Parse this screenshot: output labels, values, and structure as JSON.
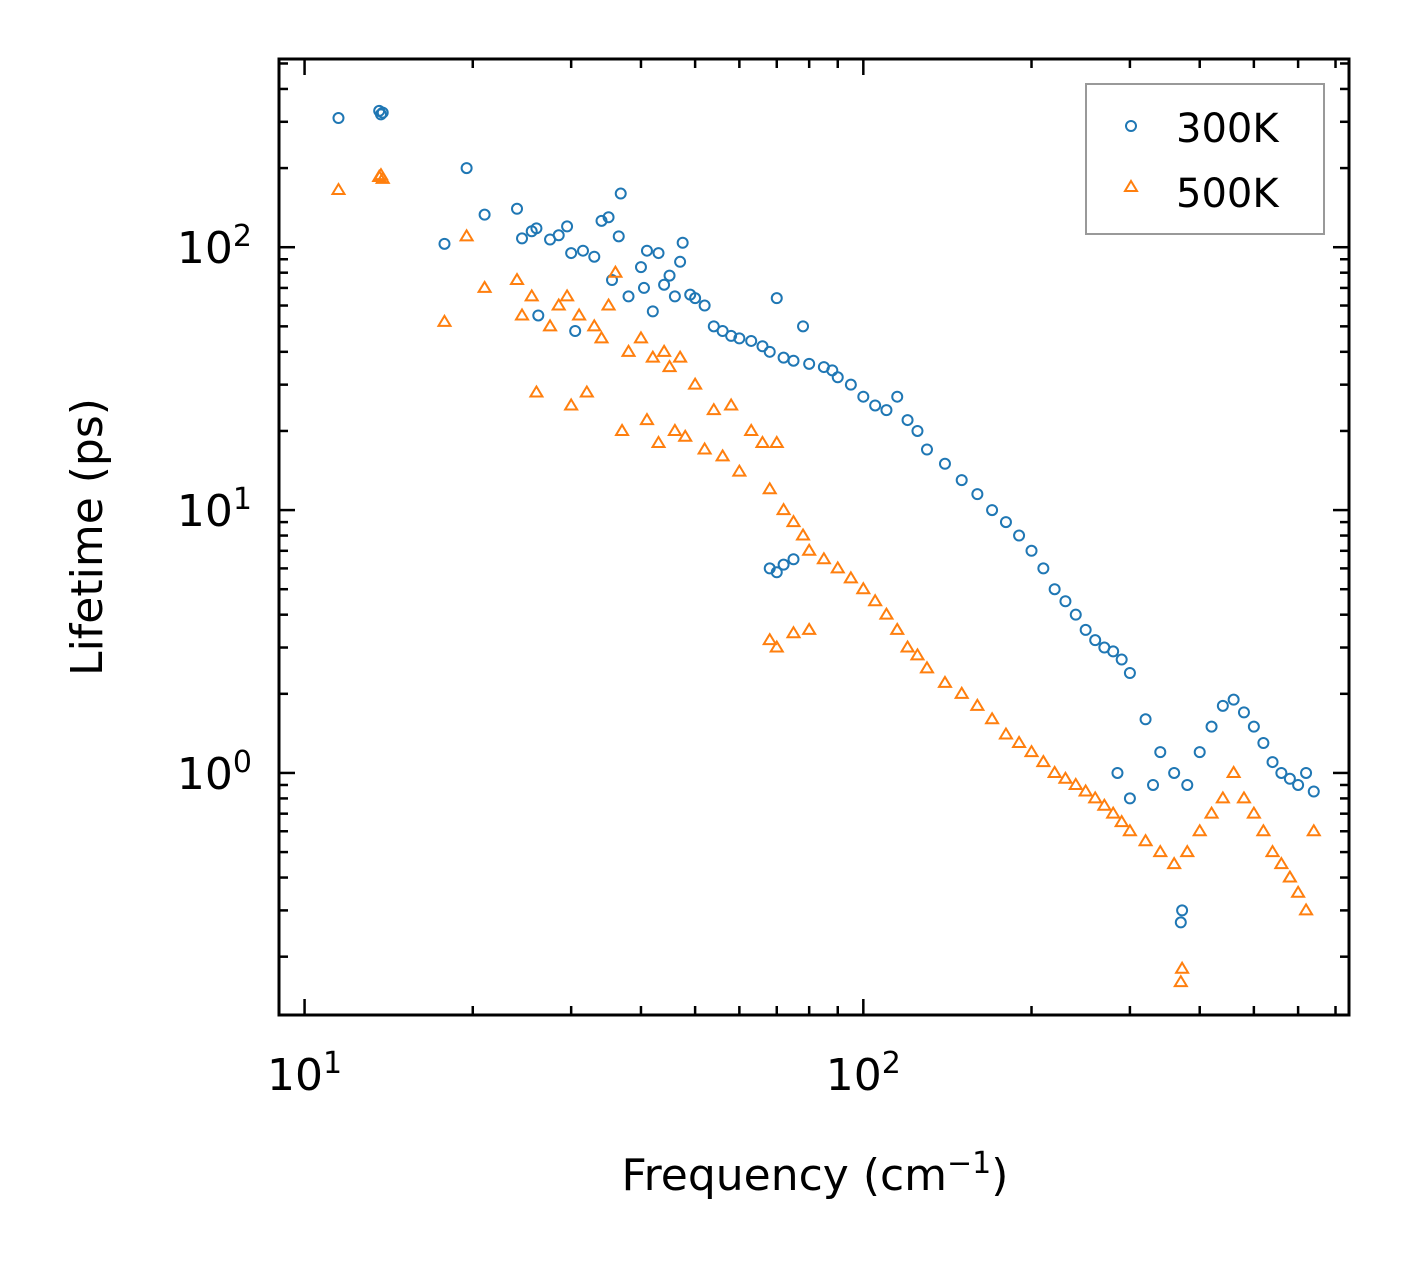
{
  "chart_data": {
    "type": "scatter",
    "title": "",
    "xlabel": "Frequency (cm",
    "xlabel_exponent": "−1",
    "xlabel_suffix": ")",
    "ylabel": "Lifetime (ps)",
    "xscale": "log",
    "yscale": "log",
    "xlim": [
      9,
      740
    ],
    "ylim": [
      0.12,
      520
    ],
    "x_ticks": [
      {
        "value": 10,
        "base": "10",
        "exp": "1"
      },
      {
        "value": 100,
        "base": "10",
        "exp": "2"
      }
    ],
    "y_ticks": [
      {
        "value": 1,
        "base": "10",
        "exp": "0"
      },
      {
        "value": 10,
        "base": "10",
        "exp": "1"
      },
      {
        "value": 100,
        "base": "10",
        "exp": "2"
      }
    ],
    "legend": {
      "position": "top-right"
    },
    "series": [
      {
        "name": "300K",
        "marker": "circle",
        "color": "#1f77b4",
        "points": [
          [
            11.5,
            310
          ],
          [
            13.6,
            330
          ],
          [
            13.7,
            320
          ],
          [
            13.8,
            325
          ],
          [
            17.8,
            103
          ],
          [
            19.5,
            200
          ],
          [
            21,
            133
          ],
          [
            24,
            140
          ],
          [
            24.5,
            108
          ],
          [
            25.5,
            115
          ],
          [
            26,
            118
          ],
          [
            26.2,
            55
          ],
          [
            27.5,
            107
          ],
          [
            28.5,
            111
          ],
          [
            29.5,
            120
          ],
          [
            30,
            95
          ],
          [
            30.5,
            48
          ],
          [
            31.5,
            97
          ],
          [
            33,
            92
          ],
          [
            34,
            126
          ],
          [
            35,
            130
          ],
          [
            35.5,
            75
          ],
          [
            36.5,
            110
          ],
          [
            36.8,
            160
          ],
          [
            38,
            65
          ],
          [
            40,
            84
          ],
          [
            40.5,
            70
          ],
          [
            41,
            97
          ],
          [
            42,
            57
          ],
          [
            43,
            95
          ],
          [
            44,
            72
          ],
          [
            45,
            78
          ],
          [
            46,
            65
          ],
          [
            47,
            88
          ],
          [
            47.5,
            104
          ],
          [
            49,
            66
          ],
          [
            50,
            64
          ],
          [
            52,
            60
          ],
          [
            54,
            50
          ],
          [
            56,
            48
          ],
          [
            58,
            46
          ],
          [
            60,
            45
          ],
          [
            63,
            44
          ],
          [
            66,
            42
          ],
          [
            68,
            40
          ],
          [
            70,
            64
          ],
          [
            72,
            38
          ],
          [
            75,
            37
          ],
          [
            78,
            50
          ],
          [
            80,
            36
          ],
          [
            85,
            35
          ],
          [
            88,
            34
          ],
          [
            90,
            32
          ],
          [
            95,
            30
          ],
          [
            100,
            27
          ],
          [
            105,
            25
          ],
          [
            110,
            24
          ],
          [
            115,
            27
          ],
          [
            120,
            22
          ],
          [
            125,
            20
          ],
          [
            130,
            17
          ],
          [
            140,
            15
          ],
          [
            150,
            13
          ],
          [
            160,
            11.5
          ],
          [
            170,
            10
          ],
          [
            180,
            9
          ],
          [
            190,
            8
          ],
          [
            200,
            7
          ],
          [
            210,
            6
          ],
          [
            220,
            5
          ],
          [
            230,
            4.5
          ],
          [
            240,
            4
          ],
          [
            250,
            3.5
          ],
          [
            260,
            3.2
          ],
          [
            270,
            3.0
          ],
          [
            280,
            2.9
          ],
          [
            290,
            2.7
          ],
          [
            300,
            2.4
          ],
          [
            320,
            1.6
          ],
          [
            340,
            1.2
          ],
          [
            360,
            1.0
          ],
          [
            380,
            0.9
          ],
          [
            400,
            1.2
          ],
          [
            420,
            1.5
          ],
          [
            440,
            1.8
          ],
          [
            460,
            1.9
          ],
          [
            480,
            1.7
          ],
          [
            500,
            1.5
          ],
          [
            520,
            1.3
          ],
          [
            540,
            1.1
          ],
          [
            560,
            1.0
          ],
          [
            580,
            0.95
          ],
          [
            600,
            0.9
          ],
          [
            620,
            1.0
          ],
          [
            640,
            0.85
          ],
          [
            68,
            6.0
          ],
          [
            70,
            5.8
          ],
          [
            72,
            6.2
          ],
          [
            75,
            6.5
          ],
          [
            285,
            1.0
          ],
          [
            300,
            0.8
          ],
          [
            330,
            0.9
          ],
          [
            370,
            0.27
          ],
          [
            372,
            0.3
          ]
        ]
      },
      {
        "name": "500K",
        "marker": "triangle",
        "color": "#ff7f0e",
        "points": [
          [
            11.5,
            165
          ],
          [
            13.6,
            185
          ],
          [
            13.7,
            188
          ],
          [
            13.8,
            182
          ],
          [
            17.8,
            52
          ],
          [
            19.5,
            110
          ],
          [
            21,
            70
          ],
          [
            24,
            75
          ],
          [
            24.5,
            55
          ],
          [
            25.5,
            65
          ],
          [
            26,
            28
          ],
          [
            27.5,
            50
          ],
          [
            28.5,
            60
          ],
          [
            29.5,
            65
          ],
          [
            30,
            25
          ],
          [
            31,
            55
          ],
          [
            32,
            28
          ],
          [
            33,
            50
          ],
          [
            34,
            45
          ],
          [
            35,
            60
          ],
          [
            36,
            80
          ],
          [
            37,
            20
          ],
          [
            38,
            40
          ],
          [
            40,
            45
          ],
          [
            41,
            22
          ],
          [
            42,
            38
          ],
          [
            43,
            18
          ],
          [
            44,
            40
          ],
          [
            45,
            35
          ],
          [
            46,
            20
          ],
          [
            47,
            38
          ],
          [
            48,
            19
          ],
          [
            50,
            30
          ],
          [
            52,
            17
          ],
          [
            54,
            24
          ],
          [
            56,
            16
          ],
          [
            58,
            25
          ],
          [
            60,
            14
          ],
          [
            63,
            20
          ],
          [
            66,
            18
          ],
          [
            68,
            12
          ],
          [
            70,
            18
          ],
          [
            72,
            10
          ],
          [
            75,
            9
          ],
          [
            78,
            8
          ],
          [
            80,
            7
          ],
          [
            85,
            6.5
          ],
          [
            90,
            6
          ],
          [
            95,
            5.5
          ],
          [
            100,
            5
          ],
          [
            105,
            4.5
          ],
          [
            110,
            4
          ],
          [
            115,
            3.5
          ],
          [
            120,
            3
          ],
          [
            125,
            2.8
          ],
          [
            130,
            2.5
          ],
          [
            140,
            2.2
          ],
          [
            150,
            2.0
          ],
          [
            160,
            1.8
          ],
          [
            170,
            1.6
          ],
          [
            180,
            1.4
          ],
          [
            190,
            1.3
          ],
          [
            200,
            1.2
          ],
          [
            210,
            1.1
          ],
          [
            220,
            1.0
          ],
          [
            230,
            0.95
          ],
          [
            240,
            0.9
          ],
          [
            250,
            0.85
          ],
          [
            260,
            0.8
          ],
          [
            270,
            0.75
          ],
          [
            280,
            0.7
          ],
          [
            290,
            0.65
          ],
          [
            300,
            0.6
          ],
          [
            320,
            0.55
          ],
          [
            340,
            0.5
          ],
          [
            360,
            0.45
          ],
          [
            380,
            0.5
          ],
          [
            400,
            0.6
          ],
          [
            420,
            0.7
          ],
          [
            440,
            0.8
          ],
          [
            460,
            1.0
          ],
          [
            480,
            0.8
          ],
          [
            500,
            0.7
          ],
          [
            520,
            0.6
          ],
          [
            540,
            0.5
          ],
          [
            560,
            0.45
          ],
          [
            580,
            0.4
          ],
          [
            600,
            0.35
          ],
          [
            620,
            0.3
          ],
          [
            640,
            0.6
          ],
          [
            68,
            3.2
          ],
          [
            70,
            3.0
          ],
          [
            75,
            3.4
          ],
          [
            80,
            3.5
          ],
          [
            370,
            0.16
          ],
          [
            372,
            0.18
          ]
        ]
      }
    ]
  }
}
